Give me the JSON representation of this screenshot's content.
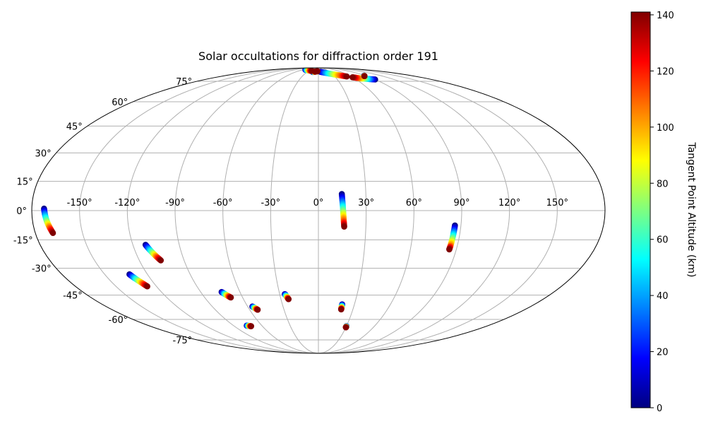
{
  "chart_data": {
    "type": "scatter",
    "projection": "Mollweide (equal-area, all-sky)",
    "title": "Solar occultations for diffraction order 191",
    "xlabel": "",
    "ylabel": "",
    "grid": true,
    "x_ticks": [
      "-150°",
      "-120°",
      "-90°",
      "-60°",
      "-30°",
      "0°",
      "30°",
      "60°",
      "90°",
      "120°",
      "150°"
    ],
    "x_tick_values": [
      -150,
      -120,
      -90,
      -60,
      -30,
      0,
      30,
      60,
      90,
      120,
      150
    ],
    "y_ticks": [
      "75°",
      "60°",
      "45°",
      "30°",
      "15°",
      "0°",
      "-15°",
      "-30°",
      "-45°",
      "-60°",
      "-75°"
    ],
    "y_tick_values": [
      75,
      60,
      45,
      30,
      15,
      0,
      -15,
      -30,
      -45,
      -60,
      -75
    ],
    "colorbar": {
      "label": "Tangent Point Altitude (km)",
      "range": [
        0,
        141
      ],
      "ticks": [
        0,
        20,
        40,
        60,
        80,
        100,
        120,
        140
      ],
      "tick_labels": [
        "0",
        "20",
        "40",
        "60",
        "80",
        "100",
        "120",
        "140"
      ],
      "colormap": "jet"
    },
    "series": [
      {
        "points": [
          [
            -172.3,
            1.0
          ],
          [
            -171.8,
            -2.0
          ],
          [
            -171.0,
            -5.5
          ],
          [
            -170.0,
            -8.5
          ],
          [
            -168.8,
            -11.5
          ]
        ]
      },
      {
        "points": [
          [
            -132.6,
            -33.3
          ],
          [
            -131.3,
            -35.0
          ],
          [
            -129.8,
            -36.7
          ],
          [
            -128.3,
            -38.3
          ],
          [
            -126.8,
            -40.0
          ]
        ]
      },
      {
        "points": [
          [
            -111.8,
            -17.6
          ],
          [
            -110.5,
            -19.7
          ],
          [
            -109.0,
            -21.8
          ],
          [
            -107.4,
            -23.8
          ],
          [
            -105.6,
            -25.8
          ]
        ]
      },
      {
        "points": [
          [
            -76.0,
            -64.2
          ],
          [
            -74.0,
            -64.4
          ],
          [
            -72.0,
            -64.6
          ]
        ]
      },
      {
        "points": [
          [
            -74.0,
            -43.2
          ],
          [
            -72.5,
            -44.3
          ],
          [
            -71.0,
            -45.4
          ],
          [
            -69.3,
            -46.4
          ]
        ]
      },
      {
        "points": [
          [
            -56.0,
            -51.8
          ],
          [
            -54.5,
            -52.8
          ],
          [
            -53.0,
            -53.8
          ]
        ]
      },
      {
        "points": [
          [
            -26.0,
            -44.4
          ],
          [
            -25.3,
            -45.4
          ],
          [
            -24.6,
            -46.4
          ],
          [
            -23.9,
            -47.4
          ]
        ]
      },
      {
        "points": [
          [
            14.8,
            8.5
          ],
          [
            15.1,
            5.0
          ],
          [
            15.4,
            1.5
          ],
          [
            15.7,
            -2.0
          ],
          [
            16.0,
            -5.5
          ],
          [
            16.3,
            -8.2
          ]
        ]
      },
      {
        "points": [
          [
            19.8,
            -50.5
          ],
          [
            19.8,
            -52.2
          ],
          [
            19.8,
            -53.6
          ]
        ]
      },
      {
        "points": [
          [
            30.0,
            -64.6
          ],
          [
            30.0,
            -65.4
          ]
        ]
      },
      {
        "points": [
          [
            86.2,
            -7.6
          ],
          [
            86.0,
            -11.0
          ],
          [
            85.8,
            -14.5
          ],
          [
            85.6,
            -18.0
          ],
          [
            85.4,
            -20.0
          ]
        ]
      },
      {
        "points": [
          [
            90.0,
            76.5
          ],
          [
            80.0,
            77.0
          ],
          [
            70.0,
            77.5
          ],
          [
            60.0,
            78.5
          ]
        ]
      },
      {
        "points": [
          [
            5.0,
            84.0
          ],
          [
            15.0,
            83.0
          ],
          [
            25.0,
            82.0
          ],
          [
            35.0,
            81.0
          ],
          [
            45.0,
            80.0
          ],
          [
            52.0,
            79.2
          ]
        ]
      },
      {
        "points": [
          [
            -5.0,
            84.5
          ],
          [
            -3.0,
            84.6
          ]
        ]
      },
      {
        "points": [
          [
            -15.0,
            83.8
          ],
          [
            -12.0,
            84.0
          ],
          [
            -8.0,
            84.2
          ]
        ]
      },
      {
        "points": [
          [
            -50.0,
            86.5
          ],
          [
            -40.0,
            86.0
          ],
          [
            -30.0,
            85.5
          ],
          [
            -20.0,
            85.0
          ]
        ]
      },
      {
        "points": [
          [
            88.0,
            80.0
          ],
          [
            86.0,
            79.5
          ]
        ]
      }
    ]
  }
}
